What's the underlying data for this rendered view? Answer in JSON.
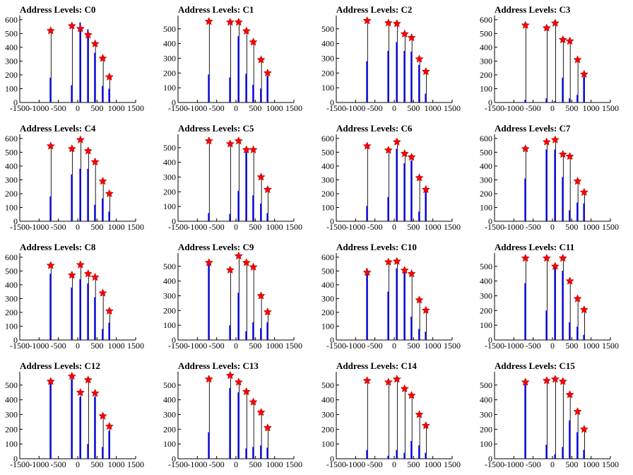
{
  "chart_data": {
    "type": "bar",
    "layout": "4x4 grid of histograms",
    "xlim": [
      -1500,
      1500
    ],
    "x_ticks": [
      "-1500",
      "-1000",
      "-500",
      "0",
      "500",
      "1000",
      "1500"
    ],
    "colors": {
      "bars": "#0000ff",
      "outline": "#000000",
      "markers": "#ff0000"
    },
    "level_positions": [
      -700,
      -150,
      70,
      270,
      450,
      650,
      820
    ],
    "charts": [
      {
        "title": "Address Levels: C0",
        "yticks": [
          0,
          100,
          200,
          300,
          400,
          500,
          600
        ],
        "ymax": 630,
        "peaks": [
          520,
          555,
          535,
          490,
          425,
          320,
          185
        ],
        "blue": [
          180,
          125,
          580,
          530,
          360,
          120,
          100
        ]
      },
      {
        "title": "Address Levels: C1",
        "yticks": [
          0,
          100,
          200,
          300,
          400,
          500
        ],
        "ymax": 590,
        "peaks": [
          550,
          545,
          545,
          485,
          410,
          290,
          200
        ],
        "blue": [
          190,
          170,
          450,
          195,
          120,
          95,
          180
        ]
      },
      {
        "title": "Address Levels: C2",
        "yticks": [
          0,
          100,
          200,
          300,
          400,
          500
        ],
        "ymax": 590,
        "peaks": [
          555,
          540,
          535,
          465,
          440,
          295,
          210
        ],
        "blue": [
          280,
          350,
          410,
          350,
          345,
          255,
          60
        ]
      },
      {
        "title": "Address Levels: C3",
        "yticks": [
          0,
          100,
          200,
          300,
          400,
          500,
          600
        ],
        "ymax": 630,
        "peaks": [
          560,
          540,
          575,
          455,
          445,
          310,
          205
        ],
        "blue": [
          20,
          30,
          10,
          180,
          30,
          55,
          185
        ]
      },
      {
        "title": "Address Levels: C4",
        "yticks": [
          0,
          100,
          200,
          300,
          400,
          500,
          600
        ],
        "ymax": 630,
        "peaks": [
          545,
          525,
          590,
          510,
          430,
          290,
          200
        ],
        "blue": [
          180,
          340,
          380,
          380,
          120,
          165,
          70
        ]
      },
      {
        "title": "Address Levels: C5",
        "yticks": [
          0,
          100,
          200,
          300,
          400,
          500
        ],
        "ymax": 590,
        "peaks": [
          545,
          525,
          545,
          485,
          485,
          300,
          215
        ],
        "blue": [
          55,
          50,
          205,
          470,
          175,
          120,
          55
        ]
      },
      {
        "title": "Address Levels: C6",
        "yticks": [
          0,
          100,
          200,
          300,
          400,
          500,
          600
        ],
        "ymax": 630,
        "peaks": [
          545,
          515,
          575,
          490,
          465,
          315,
          230
        ],
        "blue": [
          110,
          175,
          525,
          420,
          440,
          70,
          215
        ]
      },
      {
        "title": "Address Levels: C7",
        "yticks": [
          0,
          100,
          200,
          300,
          400,
          500,
          600
        ],
        "ymax": 630,
        "peaks": [
          525,
          575,
          590,
          485,
          470,
          290,
          210
        ],
        "blue": [
          310,
          520,
          520,
          320,
          80,
          135,
          130
        ]
      },
      {
        "title": "Address Levels: C8",
        "yticks": [
          0,
          100,
          200,
          300,
          400,
          500,
          600
        ],
        "ymax": 630,
        "peaks": [
          540,
          470,
          545,
          480,
          455,
          340,
          210
        ],
        "blue": [
          480,
          380,
          440,
          410,
          310,
          80,
          125
        ]
      },
      {
        "title": "Address Levels: C9",
        "yticks": [
          0,
          100,
          200,
          300,
          400,
          500
        ],
        "ymax": 590,
        "peaks": [
          525,
          475,
          570,
          525,
          495,
          300,
          190
        ],
        "blue": [
          520,
          100,
          320,
          60,
          120,
          80,
          120
        ]
      },
      {
        "title": "Address Levels: C10",
        "yticks": [
          0,
          100,
          200,
          300,
          400,
          500,
          600
        ],
        "ymax": 630,
        "peaks": [
          490,
          565,
          570,
          505,
          480,
          290,
          215
        ],
        "blue": [
          520,
          350,
          520,
          500,
          170,
          80,
          60
        ]
      },
      {
        "title": "Address Levels: C11",
        "yticks": [
          0,
          100,
          200,
          300,
          400,
          500
        ],
        "ymax": 590,
        "peaks": [
          555,
          555,
          500,
          555,
          400,
          280,
          205
        ],
        "blue": [
          385,
          200,
          510,
          470,
          120,
          90,
          35
        ]
      },
      {
        "title": "Address Levels: C12",
        "yticks": [
          0,
          100,
          200,
          300,
          400,
          500
        ],
        "ymax": 590,
        "peaks": [
          525,
          560,
          450,
          535,
          445,
          290,
          220
        ],
        "blue": [
          520,
          540,
          420,
          100,
          420,
          80,
          190
        ]
      },
      {
        "title": "Address Levels: C13",
        "yticks": [
          0,
          100,
          200,
          300,
          400,
          500
        ],
        "ymax": 590,
        "peaks": [
          540,
          565,
          520,
          455,
          385,
          315,
          210
        ],
        "blue": [
          180,
          480,
          450,
          70,
          80,
          90,
          75
        ]
      },
      {
        "title": "Address Levels: C14",
        "yticks": [
          0,
          100,
          200,
          300,
          400,
          500
        ],
        "ymax": 590,
        "peaks": [
          530,
          520,
          540,
          475,
          430,
          300,
          225
        ],
        "blue": [
          60,
          20,
          60,
          40,
          120,
          90,
          40
        ]
      },
      {
        "title": "Address Levels: C15",
        "yticks": [
          0,
          100,
          200,
          300,
          400,
          500
        ],
        "ymax": 590,
        "peaks": [
          520,
          530,
          540,
          525,
          435,
          320,
          200
        ],
        "blue": [
          510,
          95,
          30,
          80,
          260,
          180,
          60
        ]
      }
    ]
  }
}
